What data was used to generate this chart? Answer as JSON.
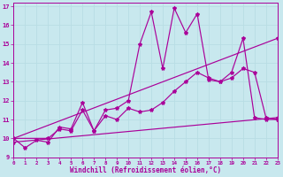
{
  "xlabel": "Windchill (Refroidissement éolien,°C)",
  "xlim": [
    0,
    23
  ],
  "ylim": [
    9,
    17.2
  ],
  "yticks": [
    9,
    10,
    11,
    12,
    13,
    14,
    15,
    16,
    17
  ],
  "xticks": [
    0,
    1,
    2,
    3,
    4,
    5,
    6,
    7,
    8,
    9,
    10,
    11,
    12,
    13,
    14,
    15,
    16,
    17,
    18,
    19,
    20,
    21,
    22,
    23
  ],
  "bg_color": "#c8e8ee",
  "line_color": "#aa0099",
  "grid_color": "#aadddd",
  "line1_x": [
    0,
    1,
    2,
    3,
    4,
    5,
    6,
    7,
    8,
    9,
    10,
    11,
    12,
    13,
    14,
    15,
    16,
    17,
    18,
    19,
    20,
    21,
    22,
    23
  ],
  "line1_y": [
    10.0,
    9.5,
    9.9,
    9.8,
    10.6,
    10.5,
    11.9,
    10.4,
    11.5,
    11.6,
    12.0,
    15.0,
    16.7,
    13.7,
    16.9,
    15.6,
    16.6,
    13.1,
    13.0,
    13.5,
    15.3,
    11.1,
    11.0,
    11.0
  ],
  "line2_x": [
    0,
    3,
    4,
    5,
    6,
    7,
    8,
    9,
    10,
    11,
    12,
    13,
    14,
    15,
    16,
    17,
    18,
    19,
    20,
    21,
    22,
    23
  ],
  "line2_y": [
    10.0,
    10.0,
    10.5,
    10.4,
    11.5,
    10.4,
    11.2,
    11.0,
    11.6,
    11.4,
    11.5,
    11.9,
    12.5,
    13.0,
    13.5,
    13.2,
    13.0,
    13.2,
    13.7,
    13.5,
    11.1,
    11.0
  ],
  "line3_x": [
    0,
    23
  ],
  "line3_y": [
    10.0,
    15.3
  ],
  "line4_x": [
    0,
    23
  ],
  "line4_y": [
    9.8,
    11.1
  ]
}
